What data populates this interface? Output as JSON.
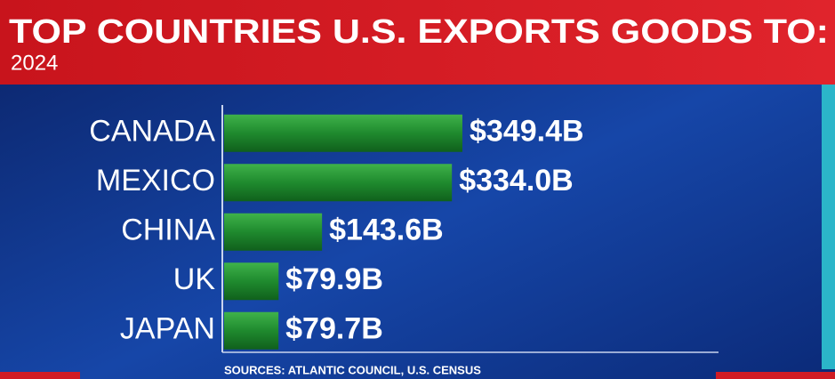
{
  "chart_data": {
    "type": "bar",
    "orientation": "horizontal",
    "title": "TOP COUNTRIES U.S. EXPORTS GOODS TO:",
    "subtitle": "2024",
    "categories": [
      "CANADA",
      "MEXICO",
      "CHINA",
      "UK",
      "JAPAN"
    ],
    "values": [
      349.4,
      334.0,
      143.6,
      79.9,
      79.7
    ],
    "value_labels": [
      "$349.4B",
      "$334.0B",
      "$143.6B",
      "$79.9B",
      "$79.7B"
    ],
    "color": "#1f8a2e",
    "source": "SOURCES: ATLANTIC COUNCIL, U.S. CENSUS"
  }
}
